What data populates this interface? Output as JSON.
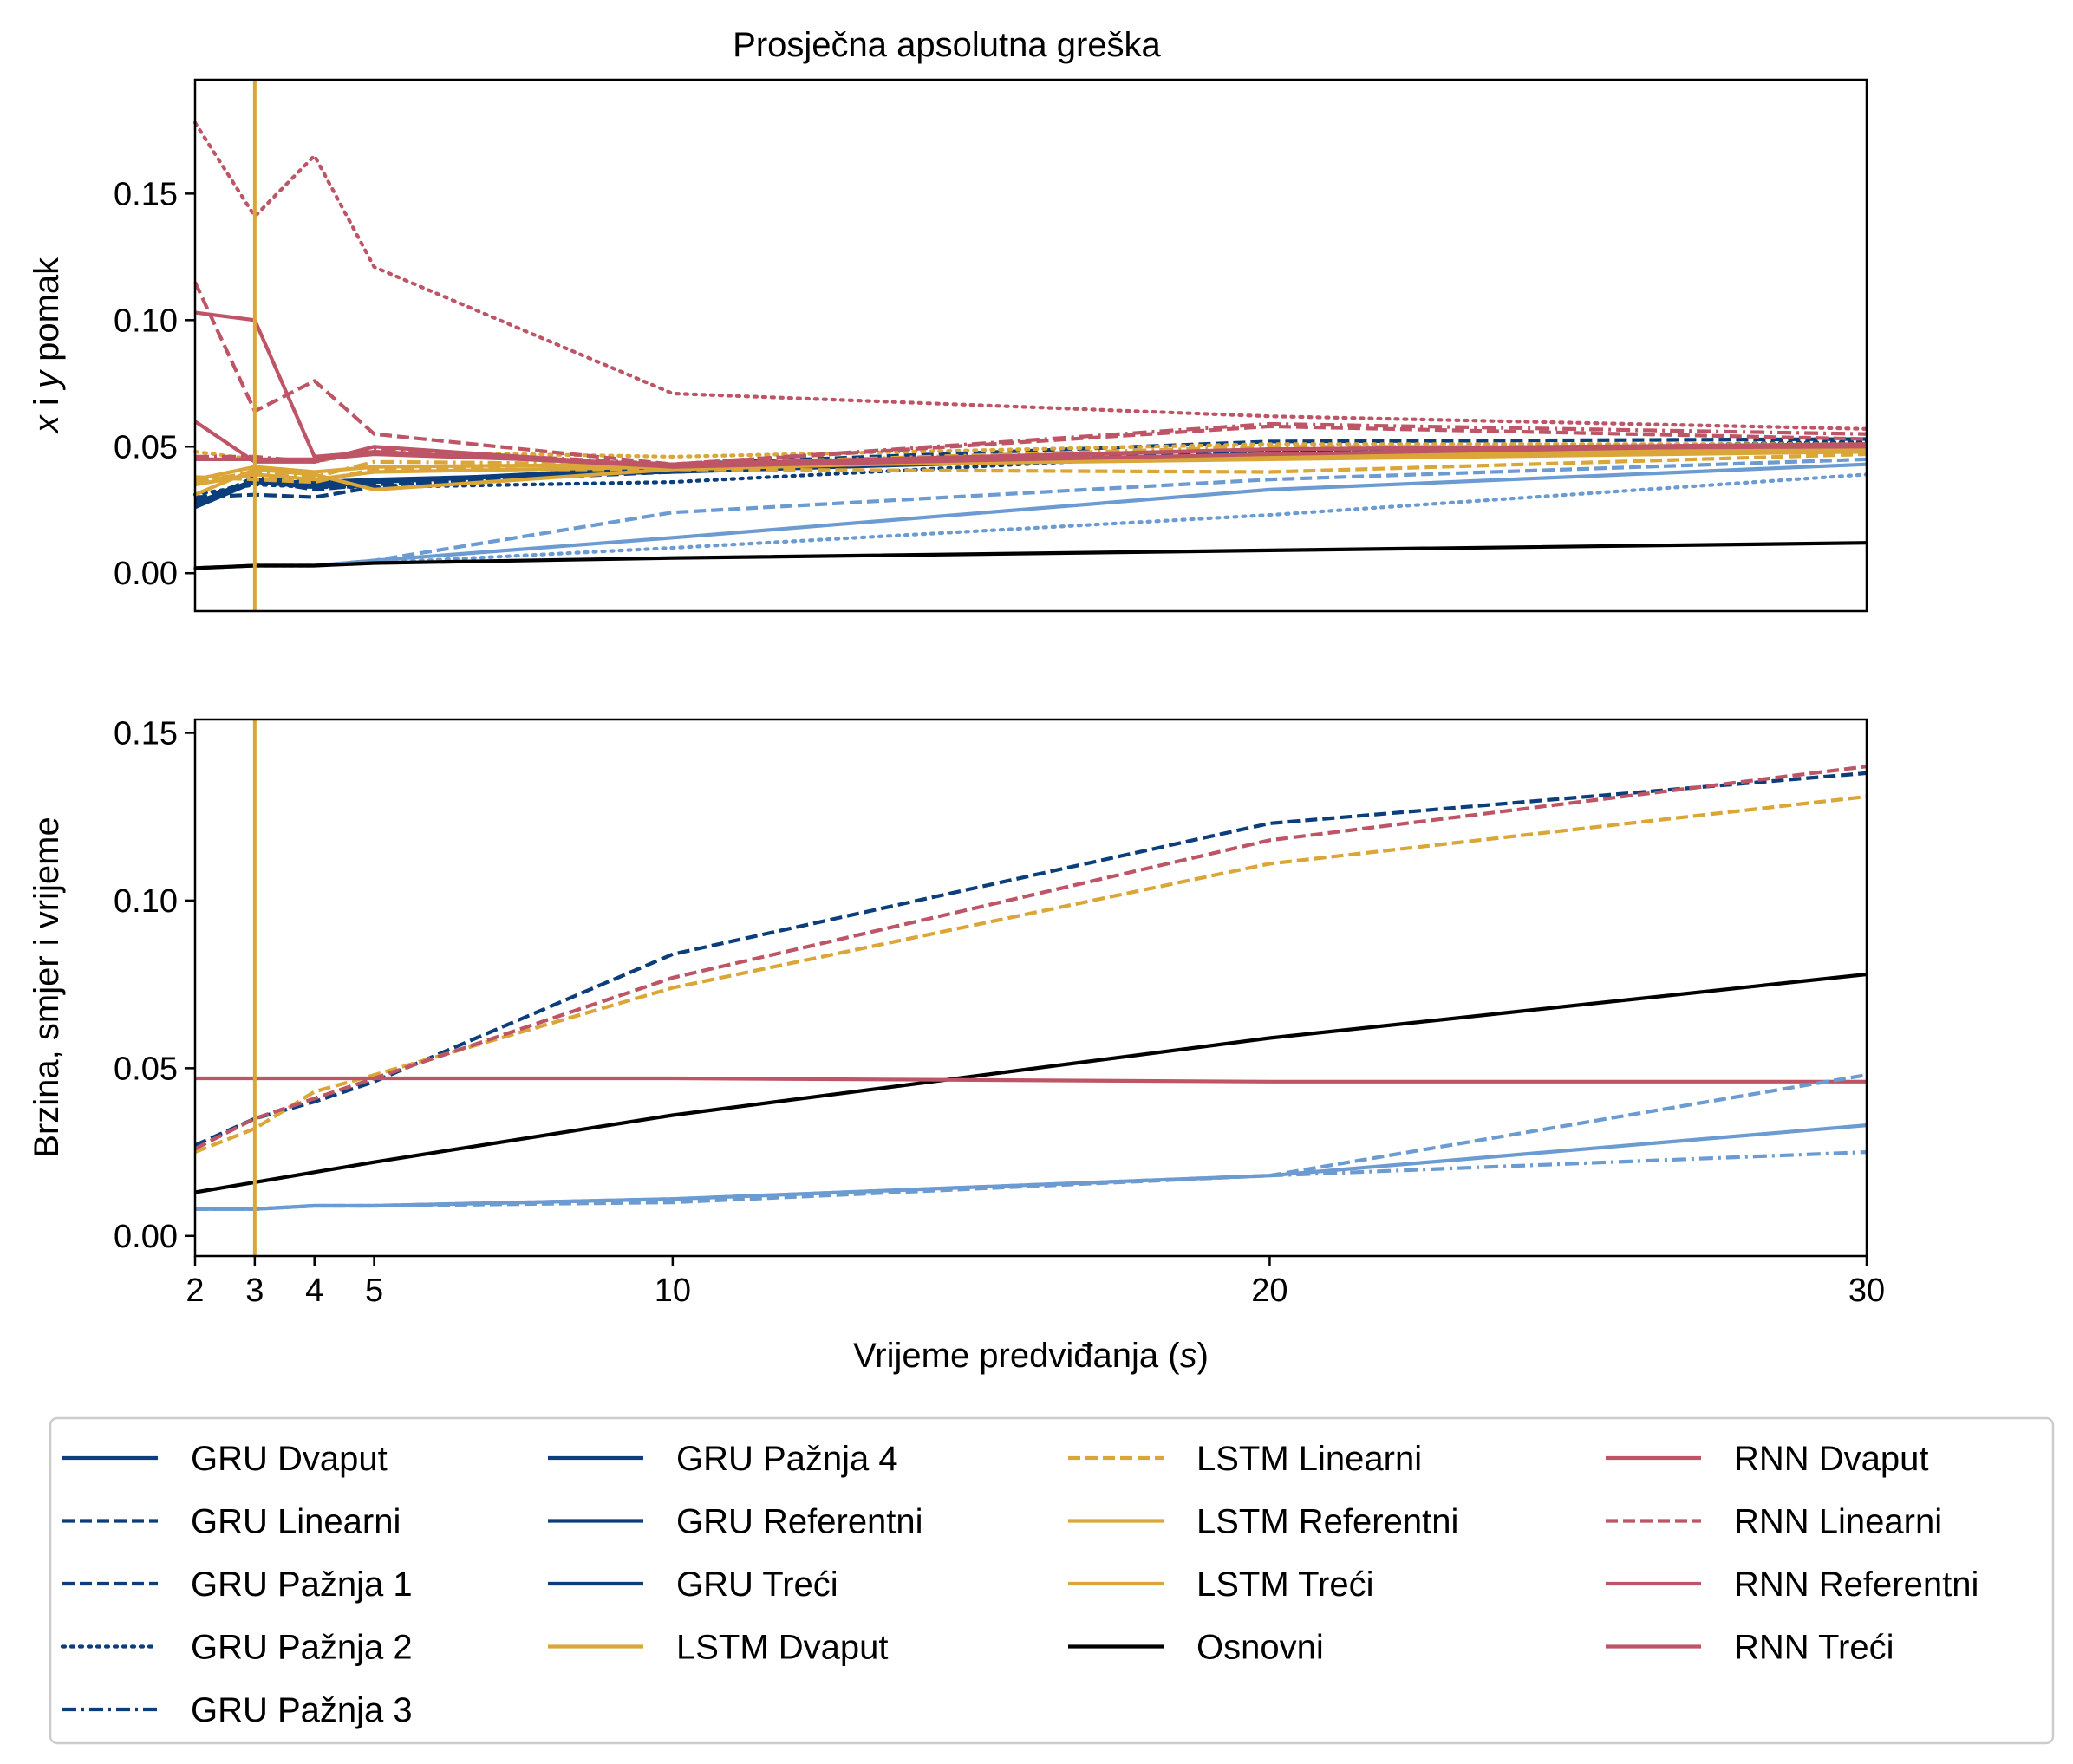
{
  "colors": {
    "gru": "#0b3e7a",
    "gru_light": "#6b9bd1",
    "lstm": "#daa638",
    "rnn": "#bd5566",
    "base": "#000000"
  },
  "chart_data": [
    {
      "type": "line",
      "title": "Prosječna apsolutna greška",
      "ylabel": "x i y pomak",
      "xlabel": "",
      "x": [
        2,
        3,
        4,
        5,
        10,
        20,
        30
      ],
      "xlim": [
        2,
        30
      ],
      "ylim": [
        -0.015,
        0.195
      ],
      "yticks": [
        0.0,
        0.05,
        0.1,
        0.15
      ],
      "ytick_labels": [
        "0.00",
        "0.05",
        "0.10",
        "0.15"
      ],
      "vline_x": 3,
      "series": [
        {
          "name": "GRU Dvaput",
          "color": "#0b3e7a",
          "dash": "solid",
          "values": [
            0.026,
            0.036,
            0.034,
            0.036,
            0.041,
            0.047,
            0.05
          ]
        },
        {
          "name": "GRU Linearni",
          "color": "#0b3e7a",
          "dash": "dashed",
          "values": [
            0.03,
            0.031,
            0.03,
            0.034,
            0.043,
            0.052,
            0.053
          ]
        },
        {
          "name": "GRU Pažnja 1",
          "color": "#0b3e7a",
          "dash": "dashed",
          "values": [
            0.029,
            0.037,
            0.033,
            0.035,
            0.04,
            0.048,
            0.051
          ]
        },
        {
          "name": "GRU Pažnja 2",
          "color": "#0b3e7a",
          "dash": "dotted",
          "values": [
            0.031,
            0.035,
            0.034,
            0.034,
            0.036,
            0.048,
            0.052
          ]
        },
        {
          "name": "GRU Pažnja 3",
          "color": "#0b3e7a",
          "dash": "dashdot",
          "values": [
            0.027,
            0.038,
            0.036,
            0.036,
            0.041,
            0.047,
            0.049
          ]
        },
        {
          "name": "GRU Pažnja 4",
          "color": "#0b3e7a",
          "dash": "solid",
          "values": [
            0.028,
            0.036,
            0.035,
            0.036,
            0.042,
            0.046,
            0.048
          ]
        },
        {
          "name": "GRU Referentni",
          "color": "#0b3e7a",
          "dash": "solid",
          "values": [
            0.027,
            0.037,
            0.035,
            0.036,
            0.041,
            0.046,
            0.049
          ]
        },
        {
          "name": "GRU Treći",
          "color": "#0b3e7a",
          "dash": "solid",
          "values": [
            0.028,
            0.036,
            0.036,
            0.037,
            0.04,
            0.047,
            0.048
          ]
        },
        {
          "name": "",
          "color": "#6b9bd1",
          "dash": "solid",
          "values": [
            0.002,
            0.003,
            0.003,
            0.005,
            0.014,
            0.033,
            0.043
          ]
        },
        {
          "name": "",
          "color": "#6b9bd1",
          "dash": "dashed",
          "values": [
            0.002,
            0.003,
            0.003,
            0.005,
            0.024,
            0.037,
            0.045
          ]
        },
        {
          "name": "",
          "color": "#6b9bd1",
          "dash": "dotted",
          "values": [
            0.002,
            0.003,
            0.003,
            0.004,
            0.01,
            0.023,
            0.039
          ]
        },
        {
          "name": "LSTM Dvaput",
          "color": "#daa638",
          "dash": "solid",
          "values": [
            0.031,
            0.041,
            0.039,
            0.033,
            0.041,
            0.047,
            0.05
          ]
        },
        {
          "name": "LSTM Linearni",
          "color": "#daa638",
          "dash": "dashed",
          "values": [
            0.038,
            0.037,
            0.036,
            0.041,
            0.041,
            0.04,
            0.047
          ]
        },
        {
          "name": "LSTM Referentni",
          "color": "#daa638",
          "dash": "solid",
          "values": [
            0.035,
            0.039,
            0.037,
            0.04,
            0.042,
            0.045,
            0.048
          ]
        },
        {
          "name": "LSTM Treći",
          "color": "#daa638",
          "dash": "solid",
          "values": [
            0.037,
            0.042,
            0.04,
            0.042,
            0.043,
            0.046,
            0.049
          ]
        },
        {
          "name": "",
          "color": "#daa638",
          "dash": "dotted",
          "values": [
            0.048,
            0.045,
            0.044,
            0.048,
            0.046,
            0.051,
            0.051
          ]
        },
        {
          "name": "",
          "color": "#daa638",
          "dash": "dashdot",
          "values": [
            0.036,
            0.04,
            0.038,
            0.044,
            0.043,
            0.05,
            0.05
          ]
        },
        {
          "name": "Osnovni",
          "color": "#000000",
          "dash": "solid",
          "values": [
            0.002,
            0.003,
            0.003,
            0.004,
            0.006,
            0.009,
            0.012
          ]
        },
        {
          "name": "RNN Dvaput",
          "color": "#bd5566",
          "dash": "solid",
          "values": [
            0.103,
            0.1,
            0.046,
            0.048,
            0.042,
            0.047,
            0.051
          ]
        },
        {
          "name": "RNN Linearni",
          "color": "#bd5566",
          "dash": "dashed",
          "values": [
            0.115,
            0.064,
            0.076,
            0.055,
            0.043,
            0.058,
            0.053
          ]
        },
        {
          "name": "RNN Referentni",
          "color": "#bd5566",
          "dash": "solid",
          "values": [
            0.06,
            0.044,
            0.044,
            0.05,
            0.042,
            0.049,
            0.05
          ]
        },
        {
          "name": "RNN Treći",
          "color": "#bd5566",
          "dash": "solid",
          "values": [
            0.045,
            0.045,
            0.045,
            0.047,
            0.043,
            0.049,
            0.051
          ]
        },
        {
          "name": "",
          "color": "#bd5566",
          "dash": "dotted",
          "values": [
            0.178,
            0.141,
            0.165,
            0.121,
            0.071,
            0.062,
            0.057
          ]
        },
        {
          "name": "",
          "color": "#bd5566",
          "dash": "dashdot",
          "values": [
            0.046,
            0.046,
            0.044,
            0.049,
            0.043,
            0.059,
            0.055
          ]
        }
      ]
    },
    {
      "type": "line",
      "title": "",
      "ylabel": "Brzina, smjer i vrijeme",
      "xlabel": "Vrijeme predviđanja (s)",
      "x": [
        2,
        3,
        4,
        5,
        10,
        20,
        30
      ],
      "xlim": [
        2,
        30
      ],
      "ylim": [
        -0.006,
        0.154
      ],
      "xticks": [
        2,
        3,
        4,
        5,
        10,
        20,
        30
      ],
      "xtick_labels": [
        "2",
        "3",
        "4",
        "5",
        "10",
        "20",
        "30"
      ],
      "yticks": [
        0.0,
        0.05,
        0.1,
        0.15
      ],
      "ytick_labels": [
        "0.00",
        "0.05",
        "0.10",
        "0.15"
      ],
      "vline_x": 3,
      "series": [
        {
          "name": "GRU Linearni",
          "color": "#0b3e7a",
          "dash": "dashed",
          "values": [
            0.027,
            0.035,
            0.04,
            0.046,
            0.084,
            0.123,
            0.138
          ]
        },
        {
          "name": "LSTM Linearni",
          "color": "#daa638",
          "dash": "dashed",
          "values": [
            0.025,
            0.032,
            0.043,
            0.048,
            0.074,
            0.111,
            0.131
          ]
        },
        {
          "name": "RNN Linearni",
          "color": "#bd5566",
          "dash": "dashed",
          "values": [
            0.026,
            0.035,
            0.041,
            0.047,
            0.077,
            0.118,
            0.14
          ]
        },
        {
          "name": "Osnovni",
          "color": "#000000",
          "dash": "solid",
          "values": [
            0.013,
            0.016,
            0.019,
            0.022,
            0.036,
            0.059,
            0.078
          ]
        },
        {
          "name": "RNN Referentni",
          "color": "#bd5566",
          "dash": "solid",
          "values": [
            0.047,
            0.047,
            0.047,
            0.047,
            0.047,
            0.046,
            0.046
          ]
        },
        {
          "name": "",
          "color": "#6b9bd1",
          "dash": "solid",
          "values": [
            0.008,
            0.008,
            0.009,
            0.009,
            0.011,
            0.018,
            0.033
          ]
        },
        {
          "name": "",
          "color": "#6b9bd1",
          "dash": "dashed",
          "values": [
            0.008,
            0.008,
            0.009,
            0.009,
            0.01,
            0.018,
            0.048
          ]
        },
        {
          "name": "",
          "color": "#6b9bd1",
          "dash": "dashdot",
          "values": [
            0.008,
            0.008,
            0.009,
            0.009,
            0.011,
            0.018,
            0.025
          ]
        }
      ]
    }
  ],
  "legend": {
    "location": "bottom",
    "items": [
      {
        "label": "GRU Dvaput",
        "color": "#0b3e7a",
        "dash": "solid"
      },
      {
        "label": "GRU Linearni",
        "color": "#0b3e7a",
        "dash": "dashed"
      },
      {
        "label": "GRU Pažnja 1",
        "color": "#0b3e7a",
        "dash": "dashed"
      },
      {
        "label": "GRU Pažnja 2",
        "color": "#0b3e7a",
        "dash": "dotted"
      },
      {
        "label": "GRU Pažnja 3",
        "color": "#0b3e7a",
        "dash": "dashdot"
      },
      {
        "label": "GRU Pažnja 4",
        "color": "#0b3e7a",
        "dash": "solid"
      },
      {
        "label": "GRU Referentni",
        "color": "#0b3e7a",
        "dash": "solid"
      },
      {
        "label": "GRU Treći",
        "color": "#0b3e7a",
        "dash": "solid"
      },
      {
        "label": "LSTM Dvaput",
        "color": "#daa638",
        "dash": "solid"
      },
      {
        "label": "LSTM Linearni",
        "color": "#daa638",
        "dash": "dashed"
      },
      {
        "label": "LSTM Referentni",
        "color": "#daa638",
        "dash": "solid"
      },
      {
        "label": "LSTM Treći",
        "color": "#daa638",
        "dash": "solid"
      },
      {
        "label": "Osnovni",
        "color": "#000000",
        "dash": "solid"
      },
      {
        "label": "RNN Dvaput",
        "color": "#bd5566",
        "dash": "solid"
      },
      {
        "label": "RNN Linearni",
        "color": "#bd5566",
        "dash": "dashed"
      },
      {
        "label": "RNN Referentni",
        "color": "#bd5566",
        "dash": "solid"
      },
      {
        "label": "RNN Treći",
        "color": "#bd5566",
        "dash": "solid"
      }
    ]
  }
}
